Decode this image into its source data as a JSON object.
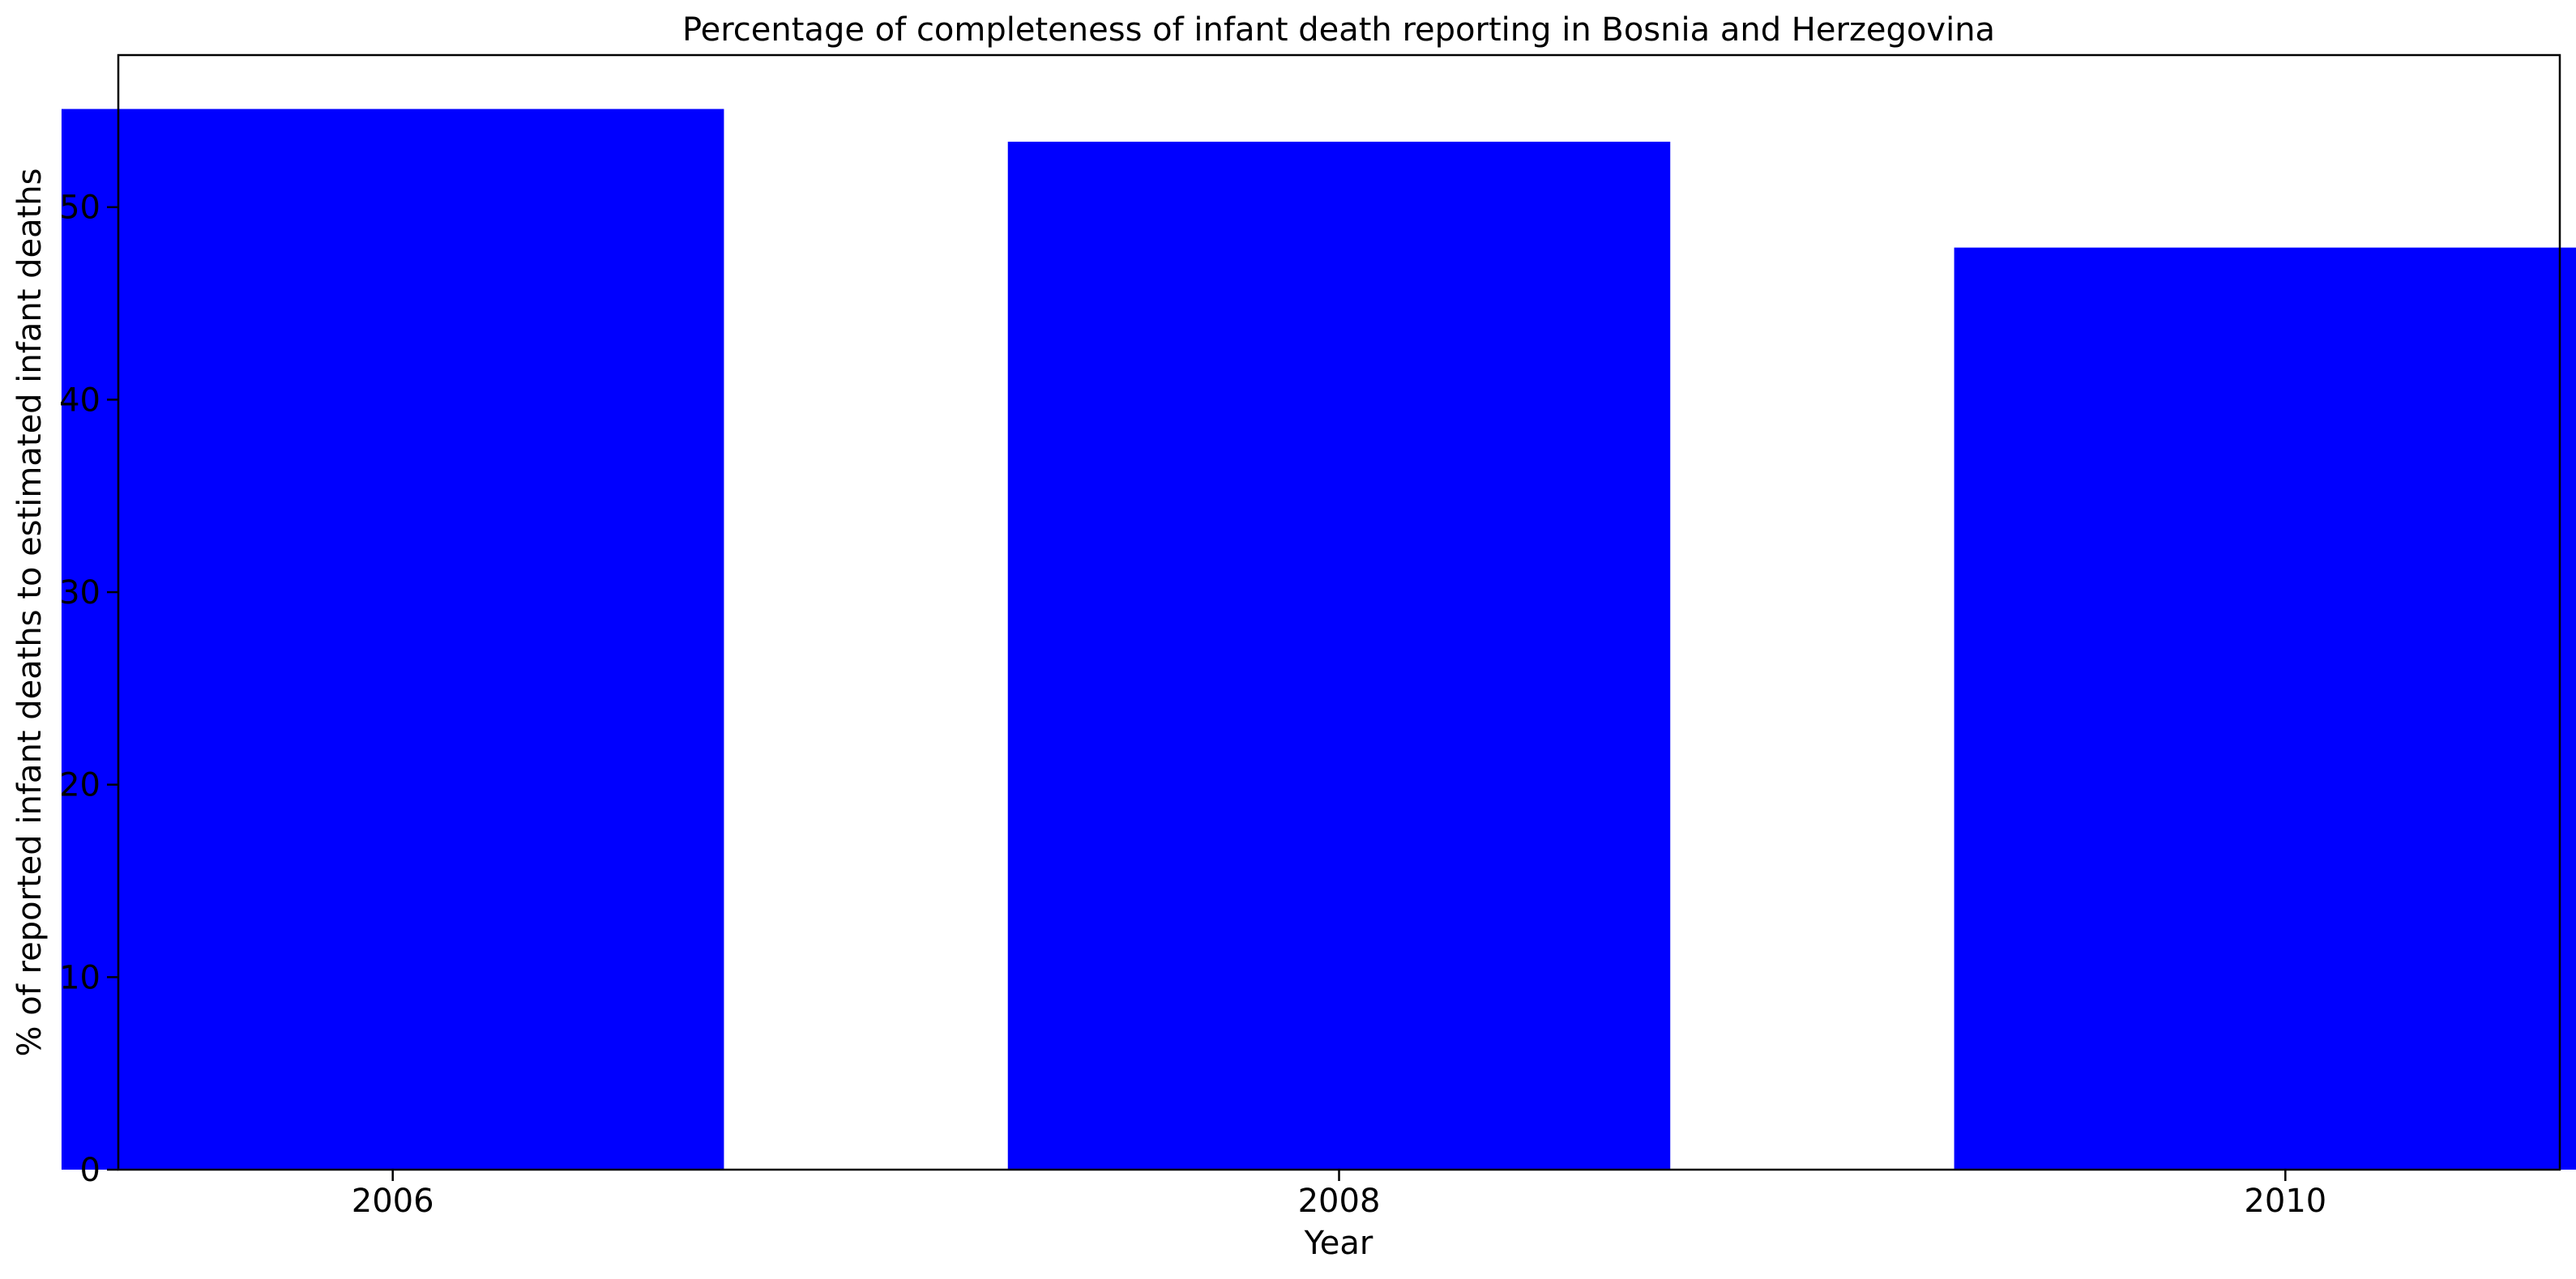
{
  "chart_data": {
    "type": "bar",
    "title": "Percentage of completeness of infant death reporting in Bosnia and Herzegovina",
    "xlabel": "Year",
    "ylabel": "% of reported infant deaths to estimated infant deaths",
    "categories": [
      "2006",
      "2008",
      "2010"
    ],
    "x": [
      2006,
      2008,
      2010
    ],
    "values": [
      55.1,
      53.4,
      47.9
    ],
    "xlim": [
      2005.42,
      2010.58
    ],
    "ylim": [
      0,
      57.9
    ],
    "yticks": [
      0,
      10,
      20,
      30,
      40,
      50
    ],
    "bar_color": "#0000ff",
    "grid": false,
    "legend": "none"
  }
}
